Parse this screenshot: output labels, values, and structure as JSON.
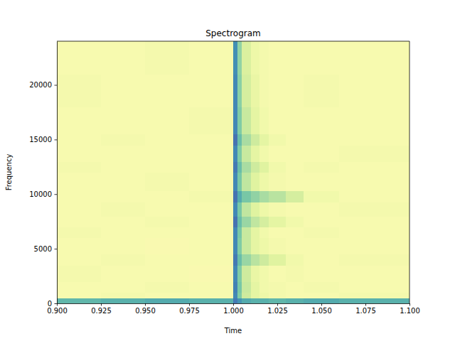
{
  "chart_data": {
    "type": "heatmap",
    "title": "Spectrogram",
    "x_label": "Time",
    "y_label": "Frequency",
    "color": "Spectral",
    "zlim": [
      -100,
      -20
    ],
    "xlim": [
      0.9,
      1.1
    ],
    "ylim": [
      0,
      24000
    ],
    "xticks": [
      {
        "value": 0.9,
        "label": "0.900"
      },
      {
        "value": 0.925,
        "label": "0.925"
      },
      {
        "value": 0.95,
        "label": "0.950"
      },
      {
        "value": 0.975,
        "label": "0.975"
      },
      {
        "value": 1.0,
        "label": "1.000"
      },
      {
        "value": 1.025,
        "label": "1.025"
      },
      {
        "value": 1.05,
        "label": "1.050"
      },
      {
        "value": 1.075,
        "label": "1.075"
      },
      {
        "value": 1.1,
        "label": "1.100"
      }
    ],
    "yticks": [
      0,
      5000,
      10000,
      15000,
      20000
    ],
    "x_bins": [
      0.9,
      0.925,
      0.95,
      0.975,
      1.0,
      1.0025,
      1.005,
      1.01,
      1.015,
      1.02,
      1.03,
      1.04,
      1.06,
      1.1
    ],
    "y_bins": [
      0,
      500,
      1000,
      2000,
      3500,
      4500,
      6000,
      7000,
      8000,
      9300,
      10300,
      12000,
      13000,
      14500,
      15500,
      18000,
      21000,
      24000
    ],
    "values": [
      [
        -35,
        -34,
        -33,
        -34,
        -26,
        -30,
        -33,
        -34,
        -34,
        -35,
        -34,
        -33,
        -34
      ],
      [
        -58,
        -57,
        -58,
        -58,
        -28,
        -39,
        -49,
        -53,
        -55,
        -57,
        -58,
        -58,
        -57
      ],
      [
        -58,
        -58,
        -57,
        -58,
        -27,
        -38,
        -48,
        -53,
        -56,
        -57,
        -58,
        -57,
        -58
      ],
      [
        -57,
        -58,
        -58,
        -59,
        -28,
        -39,
        -49,
        -54,
        -56,
        -58,
        -57,
        -58,
        -58
      ],
      [
        -58,
        -57,
        -58,
        -58,
        -26,
        -36,
        -42,
        -46,
        -49,
        -52,
        -56,
        -58,
        -57
      ],
      [
        -58,
        -58,
        -59,
        -58,
        -28,
        -39,
        -48,
        -53,
        -55,
        -57,
        -58,
        -58,
        -58
      ],
      [
        -57,
        -58,
        -58,
        -58,
        -28,
        -38,
        -48,
        -53,
        -56,
        -58,
        -58,
        -57,
        -58
      ],
      [
        -58,
        -58,
        -57,
        -58,
        -25,
        -36,
        -42,
        -47,
        -50,
        -53,
        -56,
        -58,
        -58
      ],
      [
        -58,
        -57,
        -58,
        -58,
        -28,
        -38,
        -47,
        -52,
        -55,
        -57,
        -58,
        -58,
        -57
      ],
      [
        -58,
        -58,
        -58,
        -57,
        -25,
        -33,
        -38,
        -41,
        -44,
        -46,
        -50,
        -56,
        -58
      ],
      [
        -58,
        -58,
        -57,
        -58,
        -28,
        -38,
        -47,
        -52,
        -55,
        -57,
        -58,
        -58,
        -58
      ],
      [
        -57,
        -58,
        -58,
        -58,
        -26,
        -36,
        -44,
        -49,
        -52,
        -56,
        -58,
        -57,
        -58
      ],
      [
        -58,
        -58,
        -58,
        -58,
        -28,
        -39,
        -48,
        -53,
        -56,
        -58,
        -58,
        -58,
        -57
      ],
      [
        -58,
        -57,
        -58,
        -58,
        -25,
        -36,
        -44,
        -49,
        -53,
        -56,
        -58,
        -58,
        -58
      ],
      [
        -58,
        -58,
        -58,
        -57,
        -28,
        -39,
        -48,
        -53,
        -56,
        -58,
        -58,
        -58,
        -58
      ],
      [
        -57,
        -58,
        -58,
        -58,
        -28,
        -40,
        -50,
        -54,
        -57,
        -58,
        -58,
        -57,
        -58
      ],
      [
        -58,
        -58,
        -57,
        -58,
        -29,
        -41,
        -51,
        -55,
        -57,
        -58,
        -58,
        -58,
        -58
      ]
    ]
  }
}
